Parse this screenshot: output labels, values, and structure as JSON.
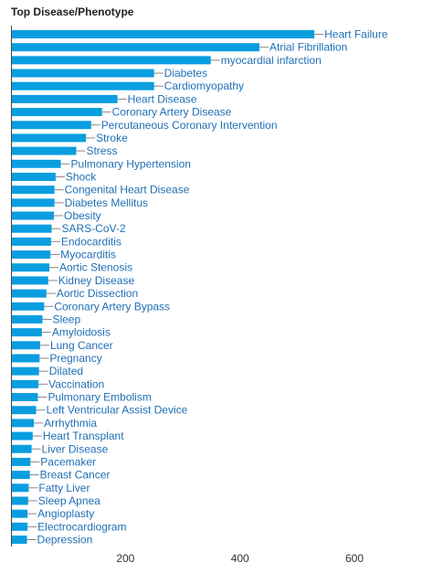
{
  "chart_data": {
    "type": "bar",
    "orientation": "horizontal",
    "title": "Top Disease/Phenotype",
    "xlabel": "",
    "ylabel": "",
    "xlim": [
      0,
      700
    ],
    "x_ticks": [
      200,
      400,
      600
    ],
    "categories": [
      "Heart Failure",
      "Atrial Fibrillation",
      "myocardial infarction",
      "Diabetes",
      "Cardiomyopathy",
      "Heart Disease",
      "Coronary Artery Disease",
      "Percutaneous Coronary Intervention",
      "Stroke",
      "Stress",
      "Pulmonary Hypertension",
      "Shock",
      "Congenital Heart Disease",
      "Diabetes Mellitus",
      "Obesity",
      "SARS-CoV-2",
      "Endocarditis",
      "Myocarditis",
      "Aortic Stenosis",
      "Kidney Disease",
      "Aortic Dissection",
      "Coronary Artery Bypass",
      "Sleep",
      "Amyloidosis",
      "Lung Cancer",
      "Pregnancy",
      "Dilated",
      "Vaccination",
      "Pulmonary Embolism",
      "Left Ventricular Assist Device",
      "Arrhythmia",
      "Heart Transplant",
      "Liver Disease",
      "Pacemaker",
      "Breast Cancer",
      "Fatty Liver",
      "Sleep Apnea",
      "Angioplasty",
      "Electrocardiogram",
      "Depression"
    ],
    "values": [
      530,
      434,
      349,
      250,
      250,
      186,
      159,
      140,
      131,
      114,
      87,
      78,
      76,
      76,
      75,
      71,
      70,
      69,
      67,
      65,
      62,
      58,
      55,
      54,
      51,
      50,
      49,
      48,
      47,
      44,
      40,
      38,
      36,
      34,
      33,
      31,
      30,
      29,
      29,
      28
    ],
    "bar_color": "#0a9ee0",
    "label_color": "#1f6fb5",
    "grid": false,
    "legend": "none"
  }
}
